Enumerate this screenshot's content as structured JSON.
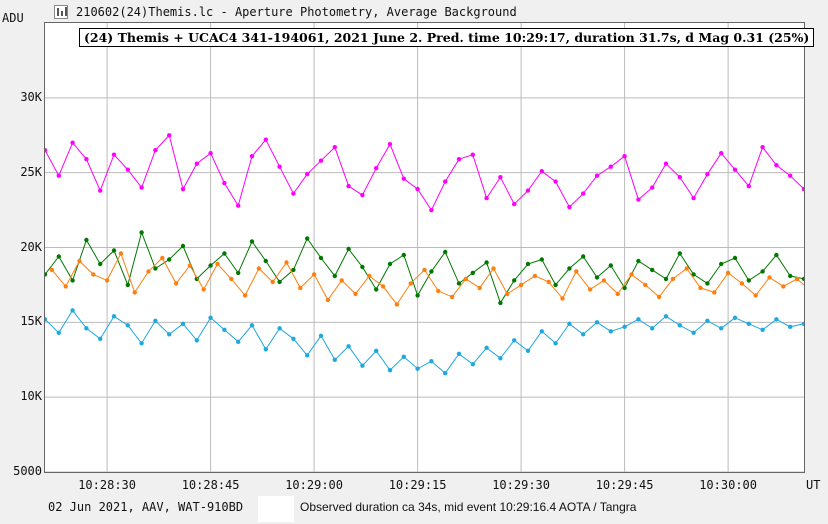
{
  "window": {
    "title": "210602(24)Themis.lc - Aperture Photometry, Average Background",
    "icon": "light-curve-icon"
  },
  "footer": {
    "left": "02 Jun 2021, AAV, WAT-910BD",
    "right": "Observed duration ca 34s, mid event 10:29:16.4  AOTA / Tangra"
  },
  "chart_data": {
    "type": "line",
    "title": "(24) Themis + UCAC4 341-194061, 2021 June 2.  Pred. time 10:29:17, duration 31.7s,  d Mag 0.31 (25%)",
    "ylabel": "ADU",
    "xlabel": "UT",
    "ylim": [
      5000,
      35000
    ],
    "xlim": [
      "10:28:21",
      "10:30:11"
    ],
    "y_ticks": [
      5000,
      10000,
      15000,
      20000,
      25000,
      30000
    ],
    "y_tick_labels": [
      "5000",
      "10K",
      "15K",
      "20K",
      "25K",
      "30K"
    ],
    "x_ticks": [
      "10:28:30",
      "10:28:45",
      "10:29:00",
      "10:29:15",
      "10:29:30",
      "10:29:45",
      "10:30:00"
    ],
    "grid": true,
    "legend": "none",
    "colors": {
      "magenta": "#ff00ff",
      "green": "#007800",
      "orange": "#ff7f0e",
      "blue": "#1fa8e0",
      "grid": "#bbbbbb"
    },
    "series": [
      {
        "color": "#ff00ff",
        "start": "10:28:21",
        "interval_s": 2,
        "values": [
          26500,
          24800,
          27000,
          25900,
          23800,
          26200,
          25200,
          24000,
          26500,
          27500,
          23900,
          25600,
          26300,
          24300,
          22800,
          26100,
          27200,
          25400,
          23600,
          24900,
          25800,
          26700,
          24100,
          23500,
          25300,
          26900,
          24600,
          23900,
          22500,
          24400,
          25900,
          26200,
          23300,
          24700,
          22900,
          23800,
          25100,
          24400,
          22700,
          23600,
          24800,
          25400,
          26100,
          23200,
          24000,
          25600,
          24700,
          23300,
          24900,
          26300,
          25200,
          24100,
          26700,
          25500,
          24800,
          23900
        ]
      },
      {
        "color": "#007800",
        "start": "10:28:21",
        "interval_s": 2,
        "values": [
          18200,
          19400,
          17800,
          20500,
          18900,
          19800,
          17500,
          21000,
          18600,
          19200,
          20100,
          17900,
          18800,
          19600,
          18300,
          20400,
          19100,
          17700,
          18500,
          20600,
          19300,
          18100,
          19900,
          18700,
          17200,
          18900,
          19500,
          16800,
          18400,
          19700,
          17600,
          18300,
          19000,
          16300,
          17800,
          18900,
          19200,
          17500,
          18600,
          19400,
          18000,
          18800,
          17300,
          19100,
          18500,
          17900,
          19600,
          18200,
          17600,
          18900,
          19300,
          17800,
          18400,
          19500,
          18100,
          17900
        ]
      },
      {
        "color": "#ff7f0e",
        "start": "10:28:22",
        "interval_s": 2,
        "values": [
          18500,
          17400,
          19100,
          18200,
          17800,
          19600,
          17000,
          18400,
          19300,
          17600,
          18800,
          17200,
          18900,
          17900,
          16800,
          18600,
          17700,
          19000,
          17300,
          18200,
          16500,
          17800,
          16900,
          18100,
          17400,
          16200,
          17600,
          18500,
          17100,
          16700,
          17900,
          17300,
          18600,
          16900,
          17500,
          18100,
          17700,
          16600,
          18400,
          17200,
          17800,
          16900,
          18200,
          17500,
          16700,
          17900,
          18600,
          17300,
          17000,
          18300,
          17600,
          16800,
          18000,
          17400,
          17900,
          17100
        ]
      },
      {
        "color": "#1fa8e0",
        "start": "10:28:21",
        "interval_s": 2,
        "values": [
          15200,
          14300,
          15800,
          14600,
          13900,
          15400,
          14800,
          13600,
          15100,
          14200,
          14900,
          13800,
          15300,
          14500,
          13700,
          14800,
          13200,
          14600,
          13900,
          12800,
          14100,
          12500,
          13400,
          12100,
          13100,
          11800,
          12700,
          11900,
          12400,
          11600,
          12900,
          12200,
          13300,
          12600,
          13800,
          13100,
          14400,
          13600,
          14900,
          14200,
          15000,
          14400,
          14700,
          15200,
          14600,
          15400,
          14800,
          14300,
          15100,
          14600,
          15300,
          14900,
          14500,
          15200,
          14700,
          14900
        ]
      }
    ]
  }
}
